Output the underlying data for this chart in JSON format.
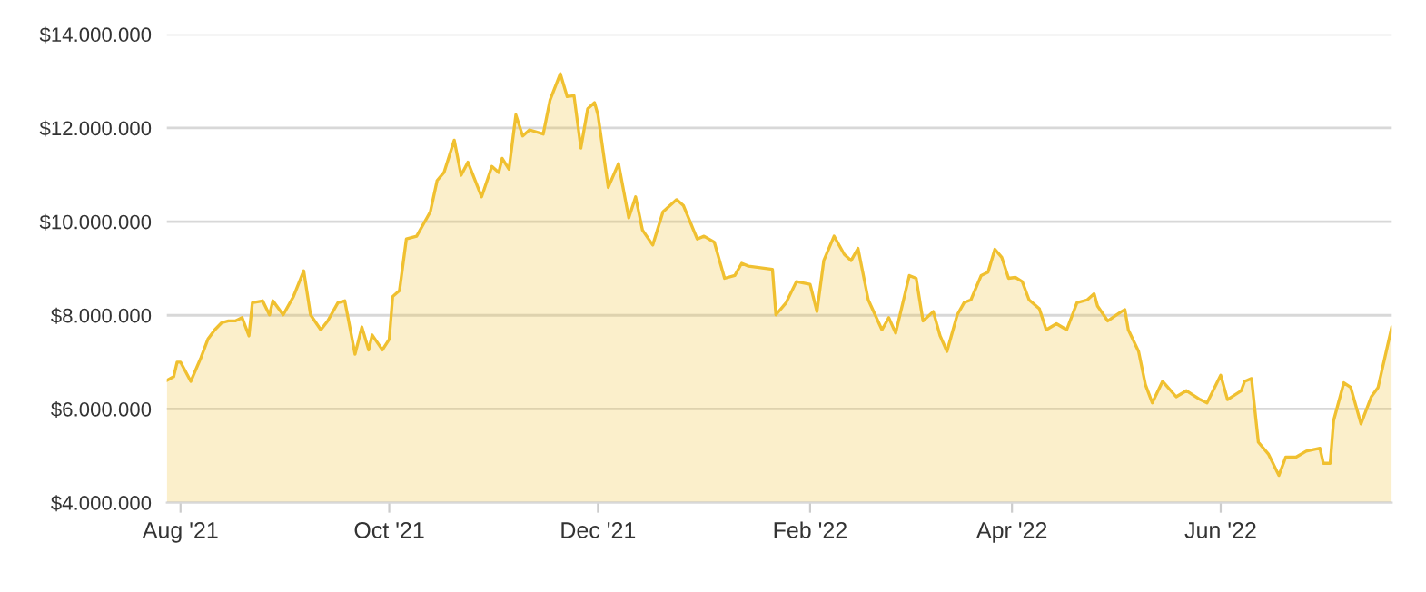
{
  "chart_data": {
    "type": "area",
    "grid": "y",
    "legend": false,
    "xlim": [
      "2021-07-28",
      "2022-07-21"
    ],
    "ylim": [
      4000000,
      14000000
    ],
    "xticks": [
      {
        "value": "2021-08-01",
        "label": "Aug '21"
      },
      {
        "value": "2021-10-01",
        "label": "Oct '21"
      },
      {
        "value": "2021-12-01",
        "label": "Dec '21"
      },
      {
        "value": "2022-02-01",
        "label": "Feb '22"
      },
      {
        "value": "2022-04-01",
        "label": "Apr '22"
      },
      {
        "value": "2022-06-01",
        "label": "Jun '22"
      }
    ],
    "yticks": [
      {
        "value": 4000000,
        "label": "$4.000.000"
      },
      {
        "value": 6000000,
        "label": "$6.000.000"
      },
      {
        "value": 8000000,
        "label": "$8.000.000"
      },
      {
        "value": 10000000,
        "label": "$10.000.000"
      },
      {
        "value": 12000000,
        "label": "$12.000.000"
      },
      {
        "value": 14000000,
        "label": "$14.000.000"
      }
    ],
    "series": [
      {
        "color": "#f0c030",
        "x": [
          "2021-07-28",
          "2021-07-30",
          "2021-07-31",
          "2021-08-01",
          "2021-08-04",
          "2021-08-07",
          "2021-08-09",
          "2021-08-11",
          "2021-08-13",
          "2021-08-15",
          "2021-08-17",
          "2021-08-19",
          "2021-08-21",
          "2021-08-22",
          "2021-08-25",
          "2021-08-27",
          "2021-08-28",
          "2021-08-31",
          "2021-09-03",
          "2021-09-06",
          "2021-09-08",
          "2021-09-11",
          "2021-09-13",
          "2021-09-16",
          "2021-09-18",
          "2021-09-21",
          "2021-09-23",
          "2021-09-25",
          "2021-09-26",
          "2021-09-29",
          "2021-10-01",
          "2021-10-02",
          "2021-10-04",
          "2021-10-06",
          "2021-10-09",
          "2021-10-12",
          "2021-10-13",
          "2021-10-15",
          "2021-10-17",
          "2021-10-20",
          "2021-10-22",
          "2021-10-24",
          "2021-10-28",
          "2021-10-31",
          "2021-11-02",
          "2021-11-03",
          "2021-11-05",
          "2021-11-07",
          "2021-11-09",
          "2021-11-11",
          "2021-11-15",
          "2021-11-17",
          "2021-11-20",
          "2021-11-22",
          "2021-11-24",
          "2021-11-26",
          "2021-11-28",
          "2021-11-30",
          "2021-12-01",
          "2021-12-04",
          "2021-12-07",
          "2021-12-10",
          "2021-12-12",
          "2021-12-14",
          "2021-12-17",
          "2021-12-20",
          "2021-12-24",
          "2021-12-26",
          "2021-12-30",
          "2022-01-01",
          "2022-01-04",
          "2022-01-07",
          "2022-01-10",
          "2022-01-12",
          "2022-01-14",
          "2022-01-21",
          "2022-01-22",
          "2022-01-25",
          "2022-01-28",
          "2022-02-01",
          "2022-02-03",
          "2022-02-05",
          "2022-02-08",
          "2022-02-11",
          "2022-02-13",
          "2022-02-15",
          "2022-02-18",
          "2022-02-22",
          "2022-02-24",
          "2022-02-26",
          "2022-03-02",
          "2022-03-04",
          "2022-03-06",
          "2022-03-09",
          "2022-03-11",
          "2022-03-13",
          "2022-03-16",
          "2022-03-18",
          "2022-03-20",
          "2022-03-23",
          "2022-03-25",
          "2022-03-27",
          "2022-03-29",
          "2022-03-31",
          "2022-04-02",
          "2022-04-04",
          "2022-04-06",
          "2022-04-09",
          "2022-04-11",
          "2022-04-14",
          "2022-04-17",
          "2022-04-20",
          "2022-04-23",
          "2022-04-25",
          "2022-04-26",
          "2022-04-29",
          "2022-05-03",
          "2022-05-04",
          "2022-05-05",
          "2022-05-08",
          "2022-05-10",
          "2022-05-12",
          "2022-05-15",
          "2022-05-19",
          "2022-05-22",
          "2022-05-26",
          "2022-05-28",
          "2022-06-01",
          "2022-06-03",
          "2022-06-07",
          "2022-06-08",
          "2022-06-10",
          "2022-06-12",
          "2022-06-15",
          "2022-06-18",
          "2022-06-20",
          "2022-06-23",
          "2022-06-26",
          "2022-06-30",
          "2022-07-01",
          "2022-07-03",
          "2022-07-04",
          "2022-07-07",
          "2022-07-09",
          "2022-07-12",
          "2022-07-15",
          "2022-07-17",
          "2022-07-21"
        ],
        "values": [
          6610000,
          6690000,
          7000000,
          7000000,
          6590000,
          7100000,
          7490000,
          7690000,
          7840000,
          7880000,
          7880000,
          7950000,
          7560000,
          8270000,
          8310000,
          8010000,
          8310000,
          8010000,
          8400000,
          8950000,
          8010000,
          7690000,
          7880000,
          8270000,
          8310000,
          7170000,
          7750000,
          7260000,
          7580000,
          7260000,
          7490000,
          8400000,
          8530000,
          9630000,
          9690000,
          10080000,
          10210000,
          10880000,
          11050000,
          11740000,
          10990000,
          11270000,
          10530000,
          11180000,
          11050000,
          11350000,
          11120000,
          12280000,
          11830000,
          11960000,
          11870000,
          12600000,
          13160000,
          12670000,
          12690000,
          11570000,
          12410000,
          12540000,
          12280000,
          10730000,
          11240000,
          10080000,
          10530000,
          9820000,
          9500000,
          10210000,
          10470000,
          10340000,
          9630000,
          9690000,
          9560000,
          8790000,
          8850000,
          9110000,
          9050000,
          8980000,
          8010000,
          8270000,
          8720000,
          8660000,
          8080000,
          9170000,
          9690000,
          9300000,
          9170000,
          9430000,
          8330000,
          7690000,
          7950000,
          7620000,
          8850000,
          8790000,
          7880000,
          8080000,
          7560000,
          7230000,
          8010000,
          8270000,
          8330000,
          8850000,
          8920000,
          9410000,
          9240000,
          8790000,
          8810000,
          8720000,
          8330000,
          8140000,
          7690000,
          7820000,
          7690000,
          8270000,
          8330000,
          8460000,
          8200000,
          7880000,
          8080000,
          8120000,
          7690000,
          7230000,
          6520000,
          6130000,
          6590000,
          6260000,
          6390000,
          6200000,
          6130000,
          6720000,
          6200000,
          6390000,
          6590000,
          6650000,
          5290000,
          5030000,
          4580000,
          4970000,
          4970000,
          5100000,
          5160000,
          4840000,
          4840000,
          5750000,
          6560000,
          6460000,
          5680000,
          6260000,
          6460000,
          7750000
        ]
      }
    ]
  }
}
